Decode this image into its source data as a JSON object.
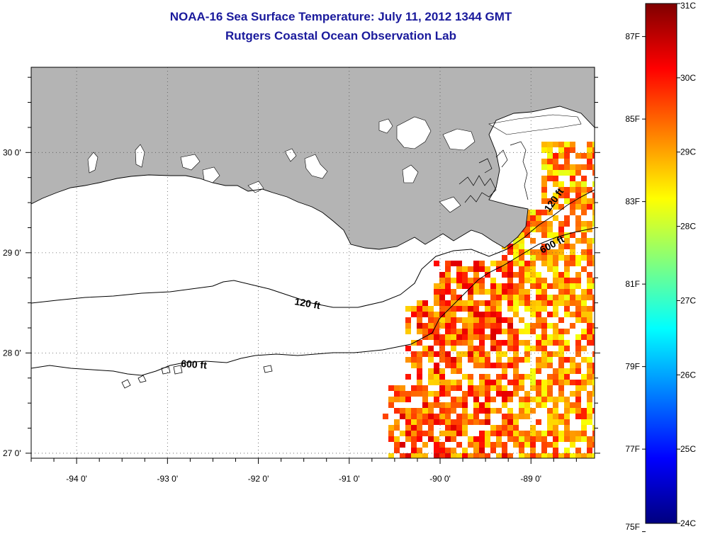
{
  "title": "NOAA-16 Sea Surface Temperature:  July 11, 2012 1344 GMT",
  "subtitle": "Rutgers Coastal Ocean Observation Lab",
  "map": {
    "lon_range": [
      -94.5,
      -88.3
    ],
    "lat_range": [
      26.95,
      30.85
    ],
    "lon_ticks": [
      "-94 0'",
      "-93 0'",
      "-92 0'",
      "-91 0'",
      "-90 0'",
      "-89 0'"
    ],
    "lat_ticks": [
      "30 0'",
      "29 0'",
      "28 0'",
      "27 0'"
    ],
    "land_color": "#b4b4b4",
    "grid": "dotted",
    "contours": [
      {
        "label": "120 ft"
      },
      {
        "label": "600 ft"
      },
      {
        "label": "120 ft"
      },
      {
        "label": "600 ft"
      }
    ]
  },
  "colorbar": {
    "celsius_range": [
      24,
      31
    ],
    "celsius_labels": [
      "31C",
      "30C",
      "29C",
      "28C",
      "27C",
      "26C",
      "25C",
      "24C"
    ],
    "fahrenheit_labels": [
      "87F",
      "85F",
      "83F",
      "81F",
      "79F",
      "77F",
      "75F"
    ],
    "colormap": "jet"
  }
}
